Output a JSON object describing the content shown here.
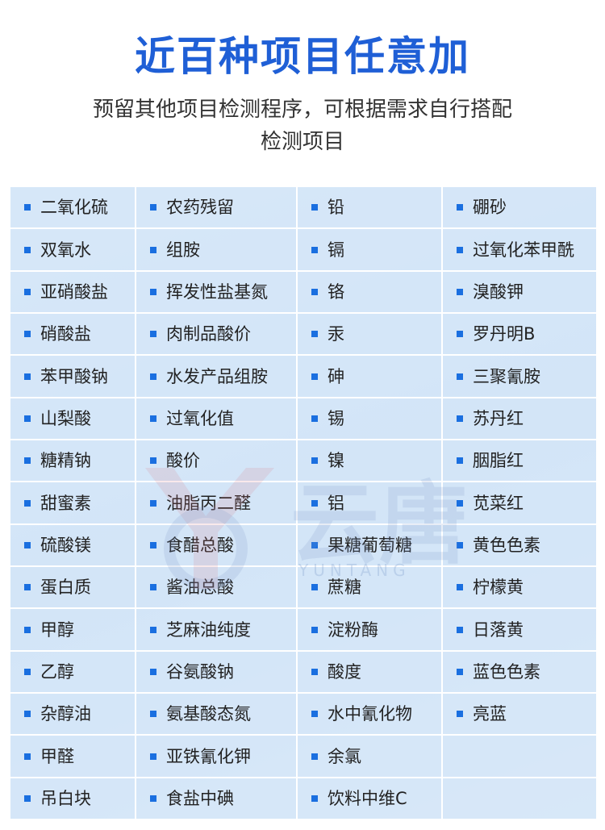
{
  "header": {
    "title": "近百种项目任意加",
    "subtitle": "预留其他项目检测程序，可根据需求自行搭配检测项目"
  },
  "watermark": {
    "name": "云唐",
    "latin": "YUNTANG"
  },
  "table": {
    "rows": [
      [
        "二氧化硫",
        "农药残留",
        "铅",
        "硼砂"
      ],
      [
        "双氧水",
        "组胺",
        "镉",
        "过氧化苯甲酰"
      ],
      [
        "亚硝酸盐",
        "挥发性盐基氮",
        "铬",
        "溴酸钾"
      ],
      [
        "硝酸盐",
        "肉制品酸价",
        "汞",
        "罗丹明B"
      ],
      [
        "苯甲酸钠",
        "水发产品组胺",
        "砷",
        "三聚氰胺"
      ],
      [
        "山梨酸",
        "过氧化值",
        "锡",
        "苏丹红"
      ],
      [
        "糖精钠",
        "酸价",
        "镍",
        "胭脂红"
      ],
      [
        "甜蜜素",
        "油脂丙二醛",
        "铝",
        "苋菜红"
      ],
      [
        "硫酸镁",
        "食醋总酸",
        "果糖葡萄糖",
        "黄色色素"
      ],
      [
        "蛋白质",
        "酱油总酸",
        "蔗糖",
        "柠檬黄"
      ],
      [
        "甲醇",
        "芝麻油纯度",
        "淀粉酶",
        "日落黄"
      ],
      [
        "乙醇",
        "谷氨酸钠",
        "酸度",
        "蓝色色素"
      ],
      [
        "杂醇油",
        "氨基酸态氮",
        "水中氰化物",
        "亮蓝"
      ],
      [
        "甲醛",
        "亚铁氰化钾",
        "余氯",
        null
      ],
      [
        "吊白块",
        "食盐中碘",
        "饮料中维C",
        null
      ]
    ]
  }
}
